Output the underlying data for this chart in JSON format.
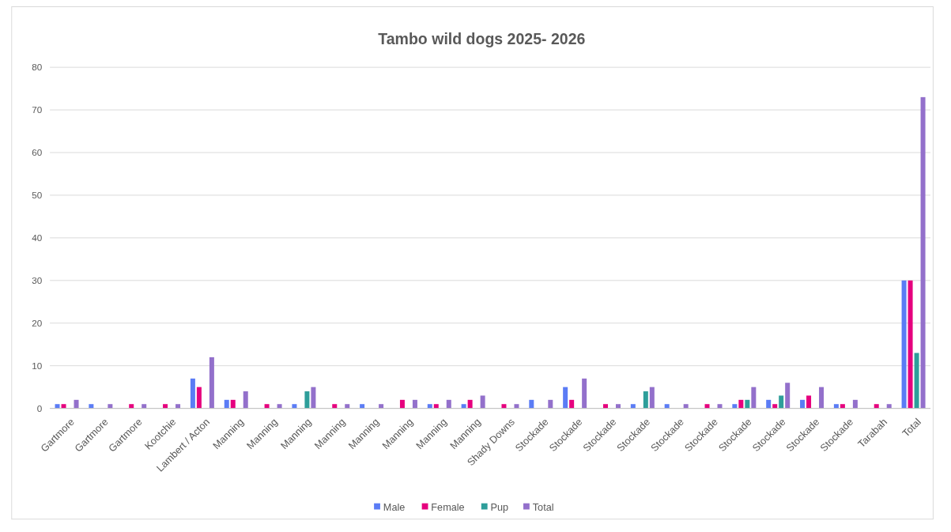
{
  "chart_data": {
    "type": "bar",
    "title": "Tambo wild dogs 2025- 2026",
    "categories": [
      "Gartmore",
      "Gartmore",
      "Gartmore",
      "Kootchie",
      "Lambert / Acton",
      "Manning",
      "Manning",
      "Manning",
      "Manning",
      "Manning",
      "Manning",
      "Manning",
      "Manning",
      "Shady Downs",
      "Stockade",
      "Stockade",
      "Stockade",
      "Stockade",
      "Stockade",
      "Stockade",
      "Stockade",
      "Stockade",
      "Stockade",
      "Stockade",
      "Tarabah",
      "Total"
    ],
    "series": [
      {
        "name": "Male",
        "color": "#5b7cf5",
        "values": [
          1,
          1,
          0,
          0,
          7,
          2,
          0,
          1,
          0,
          1,
          0,
          1,
          1,
          0,
          2,
          5,
          0,
          1,
          1,
          0,
          1,
          2,
          2,
          1,
          0,
          30
        ]
      },
      {
        "name": "Female",
        "color": "#e6007e",
        "values": [
          1,
          0,
          1,
          1,
          5,
          2,
          1,
          0,
          1,
          0,
          2,
          1,
          2,
          1,
          0,
          2,
          1,
          0,
          0,
          1,
          2,
          1,
          3,
          1,
          1,
          30
        ]
      },
      {
        "name": "Pup",
        "color": "#2e9e9a",
        "values": [
          0,
          0,
          0,
          0,
          0,
          0,
          0,
          4,
          0,
          0,
          0,
          0,
          0,
          0,
          0,
          0,
          0,
          4,
          0,
          0,
          2,
          3,
          0,
          0,
          0,
          13
        ]
      },
      {
        "name": "Total",
        "color": "#9370cb",
        "values": [
          2,
          1,
          1,
          1,
          12,
          4,
          1,
          5,
          1,
          1,
          2,
          2,
          3,
          1,
          2,
          7,
          1,
          5,
          1,
          1,
          5,
          6,
          5,
          2,
          1,
          73
        ]
      }
    ],
    "ylim": [
      0,
      80
    ],
    "yticks": [
      0,
      10,
      20,
      30,
      40,
      50,
      60,
      70,
      80
    ],
    "grid": "y",
    "legend": "bottom"
  }
}
